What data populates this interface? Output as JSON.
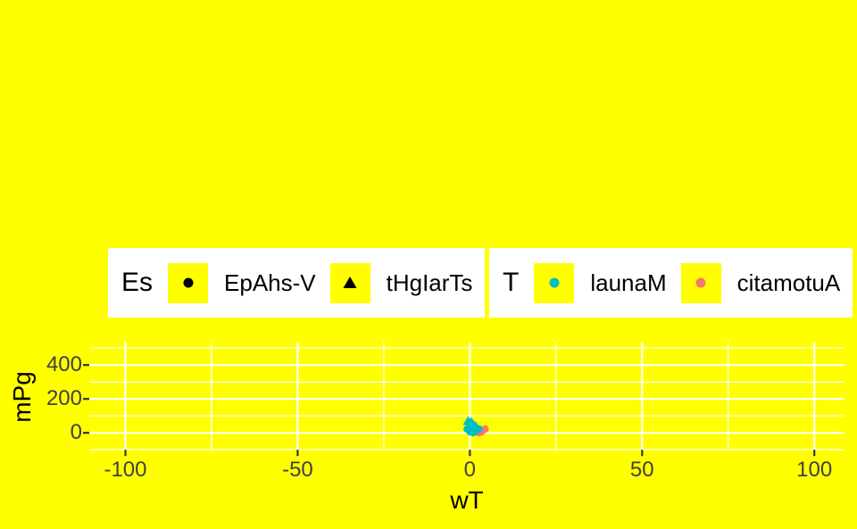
{
  "colors": {
    "background": "#FFFF00",
    "panel_background": "#FFFF00",
    "gridline": "#FFFFFF",
    "legend_background": "#FFFFFF",
    "legend_key_background": "#FFFF00",
    "tick_mark": "#333333",
    "tick_text": "#404040",
    "title_text": "#000000",
    "series_teal": "#00BFC4",
    "series_red": "#F8766D",
    "series_black": "#000000"
  },
  "legends": [
    {
      "title": "Es",
      "items": [
        {
          "label": "EpAhs-V",
          "marker": "circle",
          "color": "#000000"
        },
        {
          "label": "tHgIarTs",
          "marker": "triangle",
          "color": "#000000"
        }
      ]
    },
    {
      "title": "T",
      "items": [
        {
          "label": "launaM",
          "marker": "circle",
          "color": "#00BFC4"
        },
        {
          "label": "citamotuA",
          "marker": "circle",
          "color": "#F8766D"
        }
      ]
    }
  ],
  "chart_data": {
    "type": "scatter",
    "title": "",
    "xlabel": "wT",
    "ylabel": "mPg",
    "xlim": [
      -110.5,
      108.5
    ],
    "ylim": [
      -100,
      535
    ],
    "x_major_ticks": [
      -100,
      -50,
      0,
      50,
      100
    ],
    "x_minor_ticks": [
      -75,
      -25,
      25,
      75
    ],
    "y_major_ticks": [
      0,
      200,
      400
    ],
    "y_minor_ticks": [
      -100,
      100,
      300,
      500
    ],
    "x_tick_labels": [
      "-100",
      "-50",
      "0",
      "50",
      "100"
    ],
    "y_tick_labels": [
      "0",
      "200",
      "400"
    ],
    "grid": true,
    "legend_position": "top",
    "series": [
      {
        "name": "citamotuA / EpAhs-V",
        "marker": "circle",
        "color": "#F8766D",
        "points": [
          [
            4.4,
            22
          ],
          [
            3.4,
            6
          ],
          [
            2.6,
            1
          ]
        ]
      },
      {
        "name": "launaM / EpAhs-V",
        "marker": "circle",
        "color": "#00BFC4",
        "points": [
          [
            -0.8,
            22
          ],
          [
            0.5,
            17
          ],
          [
            1.6,
            12
          ],
          [
            2.6,
            22
          ],
          [
            1.0,
            1
          ],
          [
            0.05,
            6
          ]
        ]
      },
      {
        "name": "launaM / tHgIarTs",
        "marker": "triangle",
        "color": "#00BFC4",
        "points": [
          [
            -0.5,
            70
          ],
          [
            0.3,
            64
          ],
          [
            -0.2,
            48
          ],
          [
            0.8,
            54
          ],
          [
            1.3,
            43
          ],
          [
            0.05,
            33
          ],
          [
            1.8,
            38
          ]
        ]
      }
    ]
  }
}
